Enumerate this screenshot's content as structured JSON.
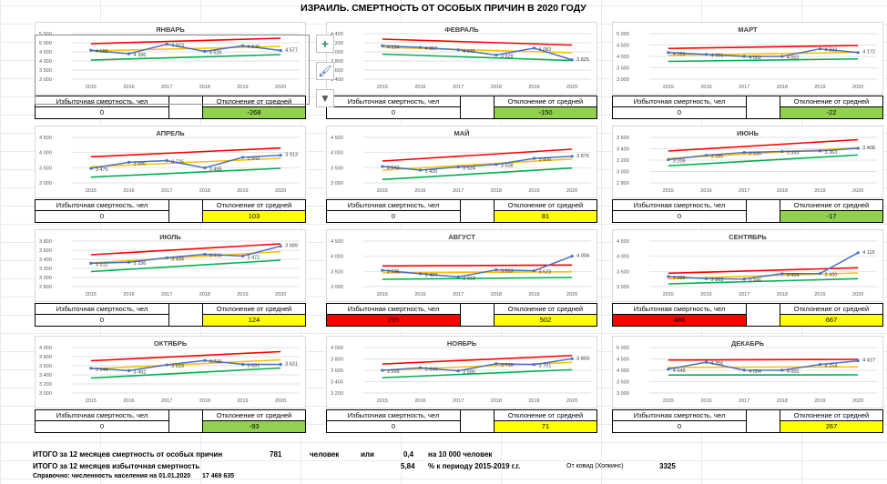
{
  "title": "ИЗРАИЛЬ. СМЕРТНОСТЬ ОТ ОСОБЫХ ПРИЧИН В 2020 ГОДУ",
  "table_labels": {
    "excess": "Избыточная смертность, чел",
    "deviation": "Отклонение от средней"
  },
  "colors": {
    "actual": "#4472c4",
    "upper": "#ff0000",
    "mean": "#ffc000",
    "lower": "#00b050",
    "green_cell": "#92d050",
    "yellow_cell": "#ffff00",
    "red_cell": "#ff0000"
  },
  "toolbar": {
    "add_icon": "plus-icon",
    "style_icon": "brush-icon",
    "filter_icon": "filter-icon"
  },
  "chart_data": [
    {
      "type": "line",
      "title": "ЯНВАРЬ",
      "x": [
        "2015",
        "2016",
        "2017",
        "2018",
        "2019",
        "2020"
      ],
      "ylim": [
        3000,
        5500
      ],
      "yticks": [
        "3 000",
        "3 500",
        "4 000",
        "4 500",
        "5 000",
        "5 500"
      ],
      "series": [
        {
          "name": "actual",
          "values": [
            4588,
            4396,
            4923,
            4526,
            4840,
            4577
          ],
          "labels": [
            "4 588",
            "4 396",
            "4 923",
            "4 526",
            "4 840",
            "4 577"
          ]
        },
        {
          "name": "upper",
          "values": [
            4950,
            null,
            null,
            null,
            null,
            5250
          ]
        },
        {
          "name": "mean",
          "values": [
            4550,
            null,
            null,
            null,
            null,
            4800
          ]
        },
        {
          "name": "lower",
          "values": [
            4050,
            null,
            null,
            null,
            null,
            4350
          ]
        }
      ],
      "excess": "0",
      "deviation": "-268",
      "excess_color": "white",
      "deviation_color": "green"
    },
    {
      "type": "line",
      "title": "ФЕВРАЛЬ",
      "x": [
        "2015",
        "2016",
        "2017",
        "2018",
        "2019",
        "2020"
      ],
      "ylim": [
        3400,
        4400
      ],
      "yticks": [
        "3 400",
        "3 600",
        "3 800",
        "4 000",
        "4 200",
        "4 400"
      ],
      "series": [
        {
          "name": "actual",
          "values": [
            4134,
            4097,
            4045,
            3929,
            4082,
            3825
          ],
          "labels": [
            "4 134",
            "4 097",
            "4 045",
            "3 929",
            "4 082",
            "3 825"
          ]
        },
        {
          "name": "upper",
          "values": [
            4280,
            null,
            null,
            null,
            null,
            4150
          ]
        },
        {
          "name": "mean",
          "values": [
            4100,
            null,
            null,
            null,
            null,
            3980
          ]
        },
        {
          "name": "lower",
          "values": [
            3950,
            null,
            null,
            null,
            null,
            3810
          ]
        }
      ],
      "excess": "0",
      "deviation": "-150",
      "excess_color": "white",
      "deviation_color": "green"
    },
    {
      "type": "line",
      "title": "МАРТ",
      "x": [
        "2015",
        "2016",
        "2017",
        "2018",
        "2019",
        "2020"
      ],
      "ylim": [
        3000,
        5000
      ],
      "yticks": [
        "3 000",
        "3 500",
        "4 000",
        "4 500",
        "5 000"
      ],
      "series": [
        {
          "name": "actual",
          "values": [
            4169,
            4091,
            4002,
            4002,
            4332,
            4172
          ],
          "labels": [
            "4 169",
            "4 091",
            "4 002",
            "4 002",
            "4 332",
            "4 172"
          ]
        },
        {
          "name": "upper",
          "values": [
            4350,
            null,
            null,
            null,
            null,
            4480
          ]
        },
        {
          "name": "mean",
          "values": [
            4050,
            null,
            null,
            null,
            null,
            4180
          ]
        },
        {
          "name": "lower",
          "values": [
            3780,
            null,
            null,
            null,
            null,
            3890
          ]
        }
      ],
      "excess": "0",
      "deviation": "-22",
      "excess_color": "white",
      "deviation_color": "green"
    },
    {
      "type": "line",
      "title": "АПРЕЛЬ",
      "x": [
        "2015",
        "2016",
        "2017",
        "2018",
        "2019",
        "2020"
      ],
      "ylim": [
        3000,
        4500
      ],
      "yticks": [
        "3 000",
        "3 500",
        "4 000",
        "4 500"
      ],
      "series": [
        {
          "name": "actual",
          "values": [
            3475,
            3680,
            3735,
            3495,
            3842,
            3913
          ],
          "labels": [
            "3 475",
            "3 680",
            "3 735",
            "3 495",
            "3 842",
            "3 913"
          ]
        },
        {
          "name": "upper",
          "values": [
            3860,
            null,
            null,
            null,
            null,
            4150
          ]
        },
        {
          "name": "mean",
          "values": [
            3530,
            null,
            null,
            null,
            null,
            3810
          ]
        },
        {
          "name": "lower",
          "values": [
            3190,
            null,
            null,
            null,
            null,
            3480
          ]
        }
      ],
      "excess": "0",
      "deviation": "103",
      "excess_color": "white",
      "deviation_color": "yellow"
    },
    {
      "type": "line",
      "title": "МАЙ",
      "x": [
        "2015",
        "2016",
        "2017",
        "2018",
        "2019",
        "2020"
      ],
      "ylim": [
        3000,
        4500
      ],
      "yticks": [
        "3 000",
        "3 500",
        "4 000",
        "4 500"
      ],
      "series": [
        {
          "name": "actual",
          "values": [
            3542,
            3420,
            3524,
            3608,
            3806,
            3876
          ],
          "labels": [
            "3 542",
            "3 420",
            "3 524",
            "3 608",
            "3 806",
            "3 876"
          ]
        },
        {
          "name": "upper",
          "values": [
            3720,
            null,
            null,
            null,
            null,
            4110
          ]
        },
        {
          "name": "mean",
          "values": [
            3420,
            null,
            null,
            null,
            null,
            3790
          ]
        },
        {
          "name": "lower",
          "values": [
            3110,
            null,
            null,
            null,
            null,
            3490
          ]
        }
      ],
      "excess": "0",
      "deviation": "81",
      "excess_color": "white",
      "deviation_color": "yellow"
    },
    {
      "type": "line",
      "title": "ИЮНЬ",
      "x": [
        "2015",
        "2016",
        "2017",
        "2018",
        "2019",
        "2020"
      ],
      "ylim": [
        2800,
        3600
      ],
      "yticks": [
        "2 800",
        "3 000",
        "3 200",
        "3 400",
        "3 600"
      ],
      "series": [
        {
          "name": "actual",
          "values": [
            3209,
            3285,
            3335,
            3353,
            3363,
            3408
          ],
          "labels": [
            "3 209",
            "3 285",
            "3 335",
            "3 353",
            "3 363",
            "3 408"
          ]
        },
        {
          "name": "upper",
          "values": [
            3360,
            null,
            null,
            null,
            null,
            3560
          ]
        },
        {
          "name": "mean",
          "values": [
            3230,
            null,
            null,
            null,
            null,
            3420
          ]
        },
        {
          "name": "lower",
          "values": [
            3100,
            null,
            null,
            null,
            null,
            3290
          ]
        }
      ],
      "excess": "0",
      "deviation": "-17",
      "excess_color": "white",
      "deviation_color": "green"
    },
    {
      "type": "line",
      "title": "ИЮЛЬ",
      "x": [
        "2015",
        "2016",
        "2017",
        "2018",
        "2019",
        "2020"
      ],
      "ylim": [
        2800,
        3800
      ],
      "yticks": [
        "2 800",
        "3 000",
        "3 200",
        "3 400",
        "3 600",
        "3 800"
      ],
      "series": [
        {
          "name": "actual",
          "values": [
            3312,
            3336,
            3434,
            3510,
            3472,
            3689
          ],
          "labels": [
            "3 312",
            "3 336",
            "3 434",
            "3 510",
            "3 472",
            "3 689"
          ]
        },
        {
          "name": "upper",
          "values": [
            3500,
            null,
            null,
            null,
            null,
            3740
          ]
        },
        {
          "name": "mean",
          "values": [
            3320,
            null,
            null,
            null,
            null,
            3570
          ]
        },
        {
          "name": "lower",
          "values": [
            3130,
            null,
            null,
            null,
            null,
            3380
          ]
        }
      ],
      "excess": "0",
      "deviation": "124",
      "excess_color": "white",
      "deviation_color": "yellow"
    },
    {
      "type": "line",
      "title": "АВГУСТ",
      "x": [
        "2015",
        "2016",
        "2017",
        "2018",
        "2019",
        "2020"
      ],
      "ylim": [
        3000,
        4500
      ],
      "yticks": [
        "3 000",
        "3 500",
        "4 000",
        "4 500"
      ],
      "series": [
        {
          "name": "actual",
          "values": [
            3536,
            3424,
            3318,
            3553,
            3523,
            4004
          ],
          "labels": [
            "3 536",
            "3 424",
            "3 318",
            "3 553",
            "3 523",
            "4 004"
          ]
        },
        {
          "name": "upper",
          "values": [
            3680,
            null,
            null,
            null,
            null,
            3710
          ]
        },
        {
          "name": "mean",
          "values": [
            3450,
            null,
            null,
            null,
            null,
            3490
          ]
        },
        {
          "name": "lower",
          "values": [
            3240,
            null,
            null,
            null,
            null,
            3300
          ]
        }
      ],
      "excess": "295",
      "deviation": "502",
      "excess_color": "red",
      "deviation_color": "yellow"
    },
    {
      "type": "line",
      "title": "СЕНТЯБРЬ",
      "x": [
        "2015",
        "2016",
        "2017",
        "2018",
        "2019",
        "2020"
      ],
      "ylim": [
        3000,
        4500
      ],
      "yticks": [
        "3 000",
        "3 500",
        "4 000",
        "4 500"
      ],
      "series": [
        {
          "name": "actual",
          "values": [
            3330,
            3263,
            3246,
            3426,
            3430,
            4115
          ],
          "labels": [
            "3 330",
            "3 263",
            "3 246",
            "3 426",
            "3 430",
            "4 115"
          ]
        },
        {
          "name": "upper",
          "values": [
            3440,
            null,
            null,
            null,
            null,
            3620
          ]
        },
        {
          "name": "mean",
          "values": [
            3260,
            null,
            null,
            null,
            null,
            3450
          ]
        },
        {
          "name": "lower",
          "values": [
            3090,
            null,
            null,
            null,
            null,
            3260
          ]
        }
      ],
      "excess": "486",
      "deviation": "667",
      "excess_color": "red",
      "deviation_color": "yellow"
    },
    {
      "type": "line",
      "title": "ОКТЯБРЬ",
      "x": [
        "2015",
        "2016",
        "2017",
        "2018",
        "2019",
        "2020"
      ],
      "ylim": [
        3000,
        4000
      ],
      "yticks": [
        "3 000",
        "3 200",
        "3 400",
        "3 600",
        "3 800",
        "4 000"
      ],
      "series": [
        {
          "name": "actual",
          "values": [
            3544,
            3492,
            3619,
            3716,
            3631,
            3631
          ],
          "labels": [
            "3 544",
            "3 492",
            "3 619",
            "3 716",
            "3 631",
            "3 631"
          ]
        },
        {
          "name": "upper",
          "values": [
            3710,
            null,
            null,
            null,
            null,
            3910
          ]
        },
        {
          "name": "mean",
          "values": [
            3530,
            null,
            null,
            null,
            null,
            3730
          ]
        },
        {
          "name": "lower",
          "values": [
            3330,
            null,
            null,
            null,
            null,
            3550
          ]
        }
      ],
      "excess": "0",
      "deviation": "-93",
      "excess_color": "white",
      "deviation_color": "green"
    },
    {
      "type": "line",
      "title": "НОЯБРЬ",
      "x": [
        "2015",
        "2016",
        "2017",
        "2018",
        "2019",
        "2020"
      ],
      "ylim": [
        3200,
        4000
      ],
      "yticks": [
        "3 200",
        "3 400",
        "3 600",
        "3 800",
        "4 000"
      ],
      "series": [
        {
          "name": "actual",
          "values": [
            3599,
            3644,
            3590,
            3716,
            3701,
            3803
          ],
          "labels": [
            "3 599",
            "3 644",
            "3 590",
            "3 716",
            "3 701",
            "3 803"
          ]
        },
        {
          "name": "upper",
          "values": [
            3710,
            null,
            null,
            null,
            null,
            3860
          ]
        },
        {
          "name": "mean",
          "values": [
            3600,
            null,
            null,
            null,
            null,
            3740
          ]
        },
        {
          "name": "lower",
          "values": [
            3470,
            null,
            null,
            null,
            null,
            3610
          ]
        }
      ],
      "excess": "0",
      "deviation": "71",
      "excess_color": "white",
      "deviation_color": "yellow"
    },
    {
      "type": "line",
      "title": "ДЕКАБРЬ",
      "x": [
        "2015",
        "2016",
        "2017",
        "2018",
        "2019",
        "2020"
      ],
      "ylim": [
        3000,
        5000
      ],
      "yticks": [
        "3 000",
        "3 500",
        "4 000",
        "4 500",
        "5 000"
      ],
      "series": [
        {
          "name": "actual",
          "values": [
            4048,
            4356,
            4004,
            4002,
            4254,
            4417
          ],
          "labels": [
            "4 048",
            "4 356",
            "4 004",
            "4 002",
            "4 254",
            "4 417"
          ]
        },
        {
          "name": "upper",
          "values": [
            4450,
            null,
            null,
            null,
            null,
            4480
          ]
        },
        {
          "name": "mean",
          "values": [
            4130,
            null,
            null,
            null,
            null,
            4150
          ]
        },
        {
          "name": "lower",
          "values": [
            3790,
            null,
            null,
            null,
            null,
            3800
          ]
        }
      ],
      "excess": "0",
      "deviation": "267",
      "excess_color": "white",
      "deviation_color": "yellow"
    }
  ],
  "footer": {
    "row1_label": "ИТОГО за 12 месяцев  смертность от особых причин",
    "row1_value": "781",
    "row1_unit": "человек",
    "row1_or": "или",
    "row1_rate": "0,4",
    "row1_rate_unit": "на 10 000 человек",
    "row2_label": "ИТОГО за 12 месяцев избыточная смертность",
    "row2_value": "5,84",
    "row2_unit": "% к периоду 2015-2019 г.г.",
    "covid_label": "От ковид (Хопкинс)",
    "covid_value": "3325",
    "row3_label": "Справочно: численность населения на 01.01.2020",
    "row3_value": "17 469 635"
  }
}
